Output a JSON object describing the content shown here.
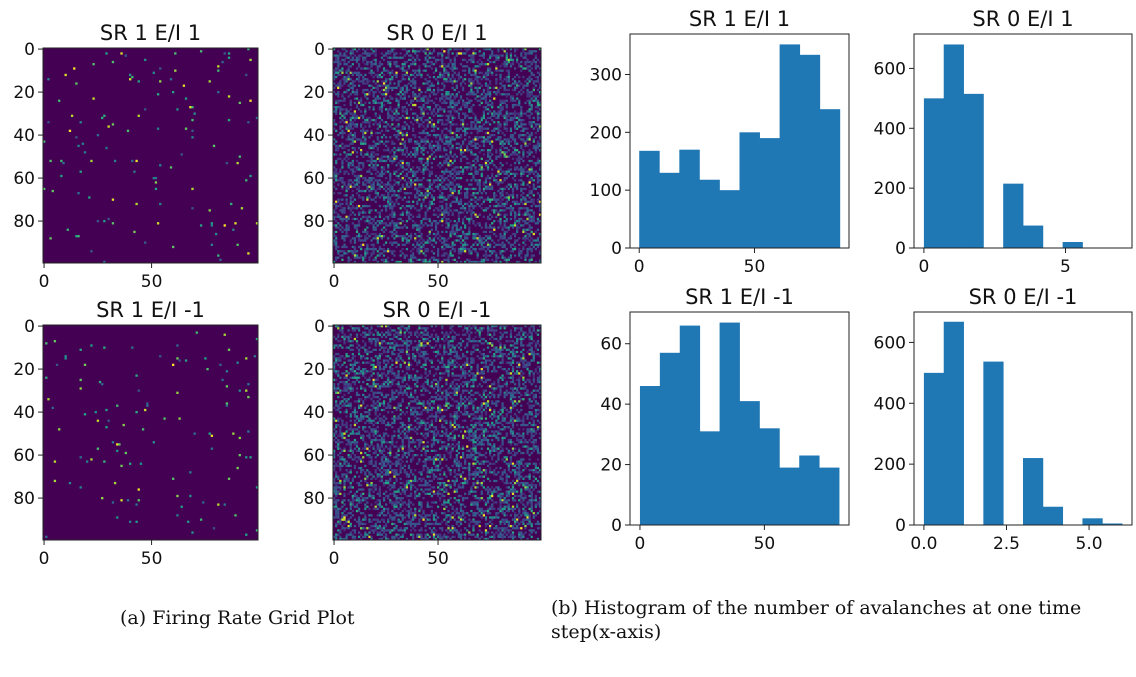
{
  "colors": {
    "bar": "#1f77b4",
    "viridis_low": "#440154",
    "viridis_mid": "#21918c",
    "viridis_high": "#fde725"
  },
  "captions": {
    "a": "(a) Firing Rate Grid Plot",
    "b_line1": "(b) Histogram of the number of avalanches at one time",
    "b_line2": "step(x-axis)"
  },
  "chart_data": [
    {
      "type": "heatmap",
      "title": "SR 1 E/I 1",
      "grid_size": 100,
      "colormap": "viridis",
      "density": "sparse",
      "xticks": [
        "0",
        "50"
      ],
      "yticks": [
        "0",
        "20",
        "40",
        "60",
        "80"
      ]
    },
    {
      "type": "heatmap",
      "title": "SR 0 E/I 1",
      "grid_size": 100,
      "colormap": "viridis",
      "density": "dense",
      "xticks": [
        "0",
        "50"
      ],
      "yticks": [
        "0",
        "20",
        "40",
        "60",
        "80"
      ]
    },
    {
      "type": "heatmap",
      "title": "SR 1 E/I -1",
      "grid_size": 100,
      "colormap": "viridis",
      "density": "sparse",
      "xticks": [
        "0",
        "50"
      ],
      "yticks": [
        "0",
        "20",
        "40",
        "60",
        "80"
      ]
    },
    {
      "type": "heatmap",
      "title": "SR 0 E/I -1",
      "grid_size": 100,
      "colormap": "viridis",
      "density": "dense",
      "xticks": [
        "0",
        "50"
      ],
      "yticks": [
        "0",
        "20",
        "40",
        "60",
        "80"
      ]
    },
    {
      "type": "bar",
      "title": "SR 1 E/I 1",
      "bin_edges": [
        0,
        8.7,
        17.4,
        26.1,
        34.8,
        43.5,
        52.2,
        60.9,
        69.6,
        78.3,
        87
      ],
      "values": [
        168,
        130,
        170,
        118,
        100,
        200,
        190,
        352,
        334,
        240
      ],
      "xlim": [
        -4,
        91
      ],
      "ylim": [
        0,
        370
      ],
      "xticks": [
        0,
        50
      ],
      "yticks": [
        0,
        100,
        200,
        300
      ]
    },
    {
      "type": "bar",
      "title": "SR 0 E/I 1",
      "bin_edges": [
        0,
        0.7,
        1.4,
        2.1,
        2.8,
        3.5,
        4.2,
        4.9,
        5.6,
        6.3,
        7.0
      ],
      "values": [
        500,
        680,
        515,
        0,
        215,
        75,
        0,
        20,
        0,
        0
      ],
      "xlim": [
        -0.35,
        7.35
      ],
      "ylim": [
        0,
        715
      ],
      "xticks": [
        0,
        5
      ],
      "yticks": [
        0,
        200,
        400,
        600
      ]
    },
    {
      "type": "bar",
      "title": "SR 1 E/I -1",
      "bin_edges": [
        0,
        8,
        16,
        24,
        32,
        40,
        48,
        56,
        64,
        72,
        80
      ],
      "values": [
        46,
        57,
        66,
        31,
        67,
        41,
        32,
        19,
        23,
        19
      ],
      "xlim": [
        -4,
        84
      ],
      "ylim": [
        0,
        70.5
      ],
      "xticks": [
        0,
        50
      ],
      "yticks": [
        0,
        20,
        40,
        60
      ]
    },
    {
      "type": "bar",
      "title": "SR 0 E/I -1",
      "bin_edges": [
        0,
        0.6,
        1.2,
        1.8,
        2.4,
        3.0,
        3.6,
        4.2,
        4.8,
        5.4,
        6.0
      ],
      "values": [
        500,
        668,
        0,
        537,
        0,
        220,
        60,
        0,
        22,
        5
      ],
      "xlim": [
        -0.3,
        6.3
      ],
      "ylim": [
        0,
        700
      ],
      "xticks": [
        "0.0",
        "2.5",
        "5.0"
      ],
      "xtick_values": [
        0,
        2.5,
        5
      ],
      "yticks": [
        0,
        200,
        400,
        600
      ]
    }
  ]
}
